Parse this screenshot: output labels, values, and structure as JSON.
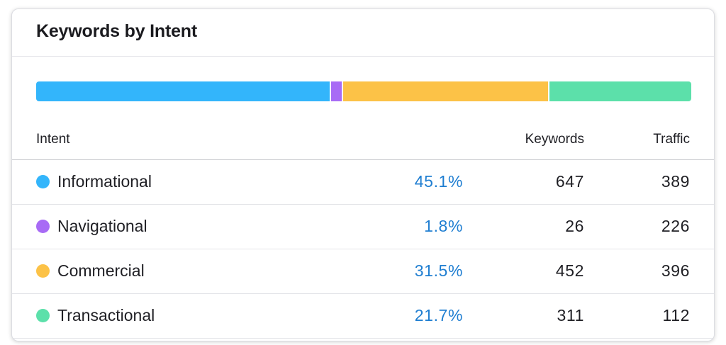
{
  "card": {
    "title": "Keywords by Intent"
  },
  "colors": {
    "informational": "#33b5fb",
    "navigational": "#a86bf5",
    "commercial": "#fcc247",
    "transactional": "#5ce0aa",
    "percent_text": "#1f7ed1"
  },
  "distribution_bar": [
    {
      "name": "Informational",
      "share_percent": 45.1,
      "color": "#33b5fb"
    },
    {
      "name": "Navigational",
      "share_percent": 1.8,
      "color": "#a86bf5"
    },
    {
      "name": "Commercial",
      "share_percent": 31.5,
      "color": "#fcc247"
    },
    {
      "name": "Transactional",
      "share_percent": 21.7,
      "color": "#5ce0aa"
    }
  ],
  "table": {
    "headers": {
      "intent": "Intent",
      "keywords": "Keywords",
      "traffic": "Traffic"
    },
    "rows": [
      {
        "intent": "Informational",
        "percent": "45.1%",
        "keywords": "647",
        "traffic": "389",
        "color": "#33b5fb"
      },
      {
        "intent": "Navigational",
        "percent": "1.8%",
        "keywords": "26",
        "traffic": "226",
        "color": "#a86bf5"
      },
      {
        "intent": "Commercial",
        "percent": "31.5%",
        "keywords": "452",
        "traffic": "396",
        "color": "#fcc247"
      },
      {
        "intent": "Transactional",
        "percent": "21.7%",
        "keywords": "311",
        "traffic": "112",
        "color": "#5ce0aa"
      }
    ]
  }
}
